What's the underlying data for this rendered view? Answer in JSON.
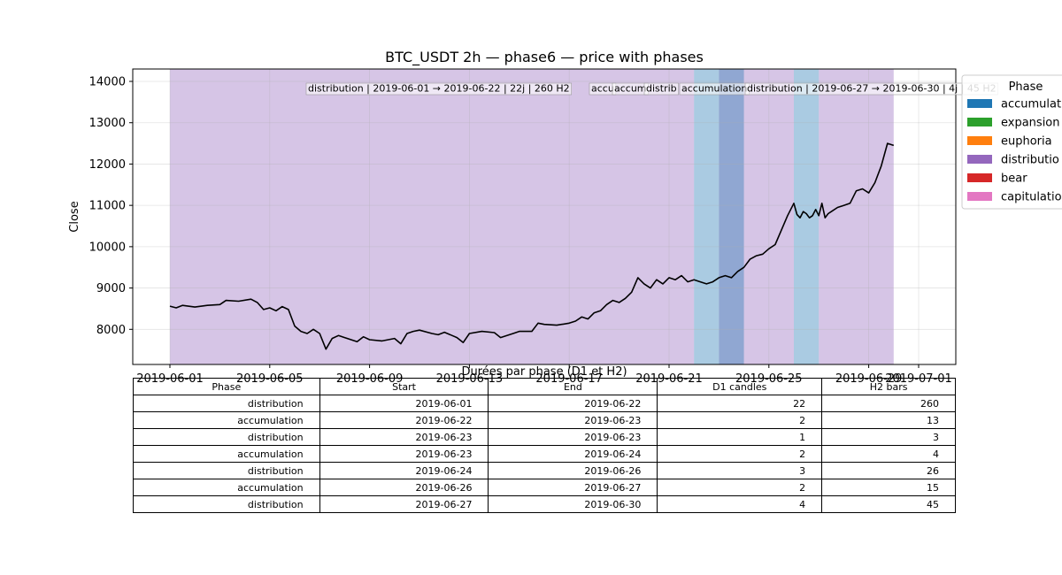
{
  "chart_data": {
    "type": "line",
    "title": "BTC_USDT 2h — phase6 — price with phases",
    "xlabel": "",
    "ylabel": "Close",
    "x_ticks": [
      "2019-06-01",
      "2019-06-05",
      "2019-06-09",
      "2019-06-13",
      "2019-06-17",
      "2019-06-21",
      "2019-06-25",
      "2019-06-29",
      "2019-07-01"
    ],
    "ylim": [
      7150,
      14300
    ],
    "y_ticks": [
      8000,
      9000,
      10000,
      11000,
      12000,
      13000,
      14000
    ],
    "grid": true,
    "x_start": "2019-06-01",
    "x_end": "2019-07-01",
    "series": [
      {
        "color": "#000000",
        "points": [
          [
            "2019-06-01T00",
            8560
          ],
          [
            "2019-06-01T06",
            8520
          ],
          [
            "2019-06-01T12",
            8580
          ],
          [
            "2019-06-02T00",
            8540
          ],
          [
            "2019-06-02T12",
            8580
          ],
          [
            "2019-06-03T00",
            8600
          ],
          [
            "2019-06-03T06",
            8700
          ],
          [
            "2019-06-03T18",
            8680
          ],
          [
            "2019-06-04T06",
            8730
          ],
          [
            "2019-06-04T12",
            8650
          ],
          [
            "2019-06-04T18",
            8480
          ],
          [
            "2019-06-05T00",
            8520
          ],
          [
            "2019-06-05T06",
            8450
          ],
          [
            "2019-06-05T12",
            8550
          ],
          [
            "2019-06-05T18",
            8480
          ],
          [
            "2019-06-06T00",
            8080
          ],
          [
            "2019-06-06T06",
            7950
          ],
          [
            "2019-06-06T12",
            7900
          ],
          [
            "2019-06-06T18",
            8000
          ],
          [
            "2019-06-07T00",
            7900
          ],
          [
            "2019-06-07T06",
            7520
          ],
          [
            "2019-06-07T12",
            7780
          ],
          [
            "2019-06-07T18",
            7850
          ],
          [
            "2019-06-08T00",
            7800
          ],
          [
            "2019-06-08T12",
            7700
          ],
          [
            "2019-06-08T18",
            7820
          ],
          [
            "2019-06-09T00",
            7750
          ],
          [
            "2019-06-09T12",
            7720
          ],
          [
            "2019-06-10T00",
            7780
          ],
          [
            "2019-06-10T06",
            7650
          ],
          [
            "2019-06-10T12",
            7900
          ],
          [
            "2019-06-10T18",
            7950
          ],
          [
            "2019-06-11T00",
            7980
          ],
          [
            "2019-06-11T12",
            7900
          ],
          [
            "2019-06-11T18",
            7870
          ],
          [
            "2019-06-12T00",
            7930
          ],
          [
            "2019-06-12T12",
            7800
          ],
          [
            "2019-06-12T18",
            7680
          ],
          [
            "2019-06-13T00",
            7900
          ],
          [
            "2019-06-13T12",
            7950
          ],
          [
            "2019-06-14T00",
            7920
          ],
          [
            "2019-06-14T06",
            7800
          ],
          [
            "2019-06-14T18",
            7900
          ],
          [
            "2019-06-15T00",
            7950
          ],
          [
            "2019-06-15T12",
            7950
          ],
          [
            "2019-06-15T18",
            8150
          ],
          [
            "2019-06-16T00",
            8120
          ],
          [
            "2019-06-16T12",
            8100
          ],
          [
            "2019-06-17T00",
            8150
          ],
          [
            "2019-06-17T06",
            8200
          ],
          [
            "2019-06-17T12",
            8300
          ],
          [
            "2019-06-17T18",
            8250
          ],
          [
            "2019-06-18T00",
            8400
          ],
          [
            "2019-06-18T06",
            8450
          ],
          [
            "2019-06-18T12",
            8600
          ],
          [
            "2019-06-18T18",
            8700
          ],
          [
            "2019-06-19T00",
            8650
          ],
          [
            "2019-06-19T06",
            8750
          ],
          [
            "2019-06-19T12",
            8900
          ],
          [
            "2019-06-19T18",
            9250
          ],
          [
            "2019-06-20T00",
            9100
          ],
          [
            "2019-06-20T06",
            9000
          ],
          [
            "2019-06-20T12",
            9200
          ],
          [
            "2019-06-20T18",
            9100
          ],
          [
            "2019-06-21T00",
            9250
          ],
          [
            "2019-06-21T06",
            9200
          ],
          [
            "2019-06-21T12",
            9300
          ],
          [
            "2019-06-21T18",
            9150
          ],
          [
            "2019-06-22T00",
            9200
          ],
          [
            "2019-06-22T06",
            9150
          ],
          [
            "2019-06-22T12",
            9100
          ],
          [
            "2019-06-22T18",
            9150
          ],
          [
            "2019-06-23T00",
            9250
          ],
          [
            "2019-06-23T06",
            9300
          ],
          [
            "2019-06-23T12",
            9250
          ],
          [
            "2019-06-23T18",
            9400
          ],
          [
            "2019-06-24T00",
            9500
          ],
          [
            "2019-06-24T06",
            9700
          ],
          [
            "2019-06-24T12",
            9780
          ],
          [
            "2019-06-24T18",
            9820
          ],
          [
            "2019-06-25T00",
            9950
          ],
          [
            "2019-06-25T06",
            10050
          ],
          [
            "2019-06-25T12",
            10400
          ],
          [
            "2019-06-25T18",
            10750
          ],
          [
            "2019-06-26T00",
            11050
          ],
          [
            "2019-06-26T03",
            10780
          ],
          [
            "2019-06-26T06",
            10700
          ],
          [
            "2019-06-26T09",
            10850
          ],
          [
            "2019-06-26T12",
            10800
          ],
          [
            "2019-06-26T15",
            10700
          ],
          [
            "2019-06-26T18",
            10750
          ],
          [
            "2019-06-26T21",
            10900
          ],
          [
            "2019-06-27T00",
            10750
          ],
          [
            "2019-06-27T03",
            11050
          ],
          [
            "2019-06-27T06",
            10700
          ],
          [
            "2019-06-27T09",
            10800
          ],
          [
            "2019-06-27T12",
            10850
          ],
          [
            "2019-06-27T18",
            10950
          ],
          [
            "2019-06-28T00",
            11000
          ],
          [
            "2019-06-28T06",
            11050
          ],
          [
            "2019-06-28T12",
            11350
          ],
          [
            "2019-06-28T18",
            11400
          ],
          [
            "2019-06-29T00",
            11300
          ],
          [
            "2019-06-29T06",
            11550
          ],
          [
            "2019-06-29T12",
            11950
          ],
          [
            "2019-06-29T18",
            12500
          ],
          [
            "2019-06-30T00",
            12450
          ]
        ]
      }
    ],
    "phase_bands": [
      {
        "phase": "distribution",
        "from": "2019-06-01",
        "to": "2019-06-22"
      },
      {
        "phase": "accumulation",
        "from": "2019-06-22",
        "to": "2019-06-23"
      },
      {
        "phase": "distribution",
        "from": "2019-06-23",
        "to": "2019-06-23"
      },
      {
        "phase": "accumulation",
        "from": "2019-06-23",
        "to": "2019-06-24"
      },
      {
        "phase": "distribution",
        "from": "2019-06-24",
        "to": "2019-06-26"
      },
      {
        "phase": "accumulation",
        "from": "2019-06-26",
        "to": "2019-06-27"
      },
      {
        "phase": "distribution",
        "from": "2019-06-27",
        "to": "2019-06-30"
      }
    ],
    "annotations": [
      "distribution | 2019-06-01 → 2019-06-22 | 22j | 260 H2",
      "accu",
      "accum",
      "distrib",
      "accumulation",
      "distribution | 2019-06-27 → 2019-06-30 | 4j | 45 H2"
    ],
    "legend": {
      "title": "Phase",
      "placement": "right",
      "entries": [
        {
          "label": "accumulati",
          "color": "#1f77b4"
        },
        {
          "label": "expansion",
          "color": "#2ca02c"
        },
        {
          "label": "euphoria",
          "color": "#ff7f0e"
        },
        {
          "label": "distributio",
          "color": "#9467bd"
        },
        {
          "label": "bear",
          "color": "#d62728"
        },
        {
          "label": "capitulatio",
          "color": "#e377c2"
        }
      ]
    }
  },
  "table": {
    "caption": "Durées par phase (D1 et H2)",
    "headers": [
      "Phase",
      "Start",
      "End",
      "D1 candles",
      "H2 bars"
    ],
    "rows": [
      [
        "distribution",
        "2019-06-01",
        "2019-06-22",
        "22",
        "260"
      ],
      [
        "accumulation",
        "2019-06-22",
        "2019-06-23",
        "2",
        "13"
      ],
      [
        "distribution",
        "2019-06-23",
        "2019-06-23",
        "1",
        "3"
      ],
      [
        "accumulation",
        "2019-06-23",
        "2019-06-24",
        "2",
        "4"
      ],
      [
        "distribution",
        "2019-06-24",
        "2019-06-26",
        "3",
        "26"
      ],
      [
        "accumulation",
        "2019-06-26",
        "2019-06-27",
        "2",
        "15"
      ],
      [
        "distribution",
        "2019-06-27",
        "2019-06-30",
        "4",
        "45"
      ]
    ]
  }
}
